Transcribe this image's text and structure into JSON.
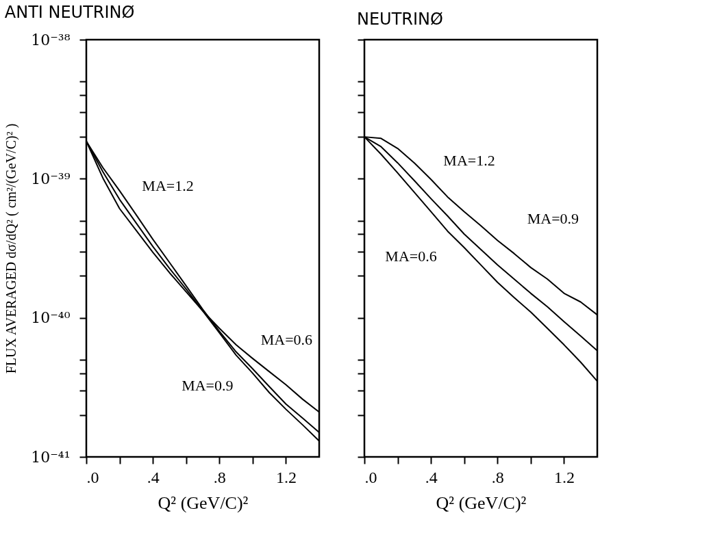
{
  "chart_data": [
    {
      "type": "line",
      "title": "ANTI NEUTRINØ",
      "xlabel": "Q²  (GeV/C)²",
      "ylabel": "FLUX AVERAGED dσ/dQ² ( cm²/(GeV/C)² )",
      "log": "y",
      "xlim": [
        0,
        1.4
      ],
      "ylim": [
        1e-41,
        1e-38
      ],
      "xticks": [
        {
          "value": 0,
          "label": ".0"
        },
        {
          "value": 0.2,
          "label": null
        },
        {
          "value": 0.4,
          "label": ".4"
        },
        {
          "value": 0.6,
          "label": null
        },
        {
          "value": 0.8,
          "label": ".8"
        },
        {
          "value": 1.0,
          "label": null
        },
        {
          "value": 1.2,
          "label": "1.2"
        }
      ],
      "yticks": [
        {
          "value": 1e-41,
          "label": "10⁻⁴¹"
        },
        {
          "value": 2e-41,
          "label": null
        },
        {
          "value": 3e-41,
          "label": null
        },
        {
          "value": 4e-41,
          "label": null
        },
        {
          "value": 5e-41,
          "label": null
        },
        {
          "value": 1e-40,
          "label": "10⁻⁴⁰"
        },
        {
          "value": 2e-40,
          "label": null
        },
        {
          "value": 3e-40,
          "label": null
        },
        {
          "value": 4e-40,
          "label": null
        },
        {
          "value": 5e-40,
          "label": null
        },
        {
          "value": 1e-39,
          "label": "10⁻³⁹"
        },
        {
          "value": 2e-39,
          "label": null
        },
        {
          "value": 3e-39,
          "label": null
        },
        {
          "value": 4e-39,
          "label": null
        },
        {
          "value": 5e-39,
          "label": null
        },
        {
          "value": 1e-38,
          "label": "10⁻³⁸"
        }
      ],
      "x": [
        0,
        0.1,
        0.2,
        0.3,
        0.4,
        0.5,
        0.6,
        0.7,
        0.8,
        0.9,
        1.0,
        1.1,
        1.2,
        1.3,
        1.4
      ],
      "series": [
        {
          "color": "#000000",
          "values": [
            1.86e-39,
            1.01e-39,
            6.1e-40,
            4.25e-40,
            2.96e-40,
            2.11e-40,
            1.54e-40,
            1.12e-40,
            8.4e-41,
            6.4e-41,
            5.1e-41,
            4.1e-41,
            3.3e-41,
            2.6e-41,
            2.1e-41
          ]
        },
        {
          "color": "#000000",
          "values": [
            1.86e-39,
            1.2e-39,
            8.2e-40,
            5.5e-40,
            3.67e-40,
            2.5e-40,
            1.7e-40,
            1.15e-40,
            8e-41,
            5.7e-41,
            4.3e-41,
            3.2e-41,
            2.4e-41,
            1.9e-41,
            1.5e-41
          ]
        },
        {
          "color": "#000000",
          "values": [
            1.86e-39,
            1.12e-39,
            7.1e-40,
            4.8e-40,
            3.26e-40,
            2.27e-40,
            1.61e-40,
            1.12e-40,
            7.8e-41,
            5.4e-41,
            4e-41,
            2.9e-41,
            2.2e-41,
            1.7e-41,
            1.3e-41
          ]
        }
      ],
      "annotations": [
        "MA=1.2",
        "MA=0.6",
        "MA=0.9"
      ]
    },
    {
      "type": "line",
      "title": "NEUTRINØ",
      "xlabel": "Q²  (GeV/C)²",
      "log": "y",
      "tick_labels": "x",
      "xlim": [
        0,
        1.4
      ],
      "ylim": [
        1e-41,
        1e-38
      ],
      "xticks": [
        {
          "value": 0,
          "label": ".0"
        },
        {
          "value": 0.2,
          "label": null
        },
        {
          "value": 0.4,
          "label": ".4"
        },
        {
          "value": 0.6,
          "label": null
        },
        {
          "value": 0.8,
          "label": ".8"
        },
        {
          "value": 1.0,
          "label": null
        },
        {
          "value": 1.2,
          "label": "1.2"
        }
      ],
      "yticks": [
        {
          "value": 1e-41,
          "label": null
        },
        {
          "value": 2e-41,
          "label": null
        },
        {
          "value": 3e-41,
          "label": null
        },
        {
          "value": 4e-41,
          "label": null
        },
        {
          "value": 5e-41,
          "label": null
        },
        {
          "value": 1e-40,
          "label": null
        },
        {
          "value": 2e-40,
          "label": null
        },
        {
          "value": 3e-40,
          "label": null
        },
        {
          "value": 4e-40,
          "label": null
        },
        {
          "value": 5e-40,
          "label": null
        },
        {
          "value": 1e-39,
          "label": null
        },
        {
          "value": 2e-39,
          "label": null
        },
        {
          "value": 3e-39,
          "label": null
        },
        {
          "value": 4e-39,
          "label": null
        },
        {
          "value": 5e-39,
          "label": null
        },
        {
          "value": 1e-38,
          "label": null
        }
      ],
      "x": [
        0,
        0.1,
        0.2,
        0.3,
        0.4,
        0.5,
        0.6,
        0.7,
        0.8,
        0.9,
        1.0,
        1.1,
        1.2,
        1.3,
        1.4
      ],
      "series": [
        {
          "color": "#000000",
          "values": [
            2e-39,
            1.95e-39,
            1.65e-39,
            1.3e-39,
            9.9e-40,
            7.4e-40,
            5.8e-40,
            4.6e-40,
            3.6e-40,
            2.9e-40,
            2.3e-40,
            1.9e-40,
            1.5e-40,
            1.3e-40,
            1.05e-40
          ]
        },
        {
          "color": "#000000",
          "values": [
            2e-39,
            1.7e-39,
            1.3e-39,
            9.7e-40,
            7.2e-40,
            5.4e-40,
            4e-40,
            3.1e-40,
            2.4e-40,
            1.9e-40,
            1.5e-40,
            1.2e-40,
            9.4e-41,
            7.4e-41,
            5.8e-41
          ]
        },
        {
          "color": "#000000",
          "values": [
            2e-39,
            1.5e-39,
            1.1e-39,
            8e-40,
            5.8e-40,
            4.2e-40,
            3.2e-40,
            2.4e-40,
            1.8e-40,
            1.4e-40,
            1.1e-40,
            8.4e-41,
            6.4e-41,
            4.8e-41,
            3.5e-41
          ]
        }
      ],
      "annotations": [
        "MA=1.2",
        "MA=0.9",
        "MA=0.6"
      ]
    }
  ]
}
